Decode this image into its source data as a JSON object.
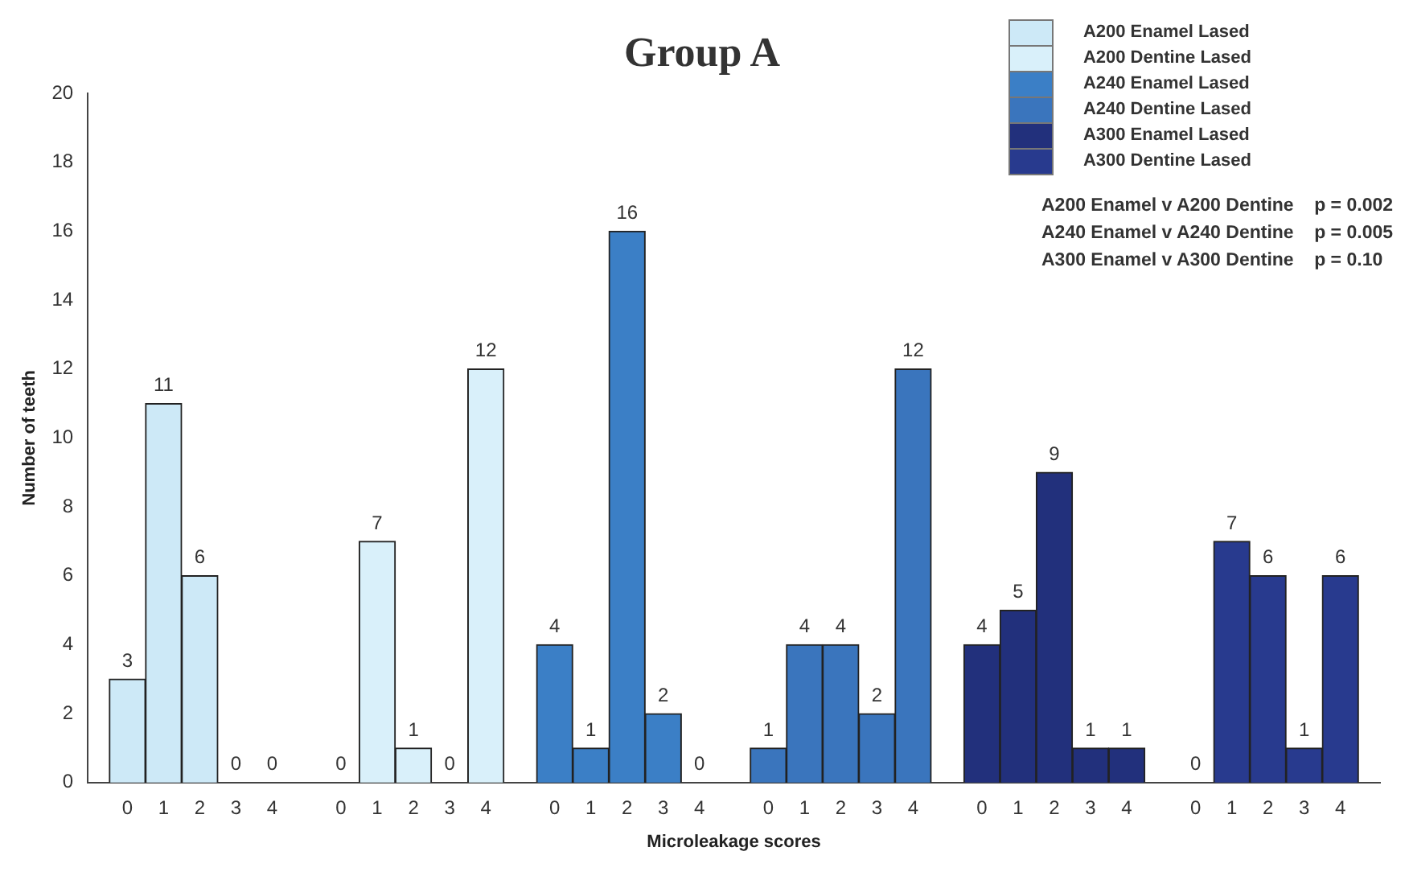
{
  "chart_data": {
    "type": "bar",
    "title": "Group A",
    "xlabel": "Microleakage scores",
    "ylabel": "Number of teeth",
    "categories": [
      "0",
      "1",
      "2",
      "3",
      "4",
      "0",
      "1",
      "2",
      "3",
      "4",
      "0",
      "1",
      "2",
      "3",
      "4",
      "0",
      "1",
      "2",
      "3",
      "4",
      "0",
      "1",
      "2",
      "3",
      "4",
      "0",
      "1",
      "2",
      "3",
      "4"
    ],
    "series": [
      {
        "name": "A200 Enamel Lased",
        "color": "#cde9f7",
        "values": [
          3,
          11,
          6,
          0,
          0,
          null,
          null,
          null,
          null,
          null,
          null,
          null,
          null,
          null,
          null,
          null,
          null,
          null,
          null,
          null,
          null,
          null,
          null,
          null,
          null,
          null,
          null,
          null,
          null,
          null
        ]
      },
      {
        "name": "A200 Dentine Lased",
        "color": "#d9f0fa",
        "values": [
          null,
          null,
          null,
          null,
          null,
          0,
          7,
          1,
          0,
          12,
          null,
          null,
          null,
          null,
          null,
          null,
          null,
          null,
          null,
          null,
          null,
          null,
          null,
          null,
          null,
          null,
          null,
          null,
          null,
          null
        ]
      },
      {
        "name": "A240 Enamel Lased",
        "color": "#3b7fc6",
        "values": [
          null,
          null,
          null,
          null,
          null,
          null,
          null,
          null,
          null,
          null,
          4,
          1,
          16,
          2,
          0,
          null,
          null,
          null,
          null,
          null,
          null,
          null,
          null,
          null,
          null,
          null,
          null,
          null,
          null,
          null
        ]
      },
      {
        "name": "A240 Dentine Lased",
        "color": "#3a75bd",
        "values": [
          null,
          null,
          null,
          null,
          null,
          null,
          null,
          null,
          null,
          null,
          null,
          null,
          null,
          null,
          null,
          1,
          4,
          4,
          2,
          12,
          null,
          null,
          null,
          null,
          null,
          null,
          null,
          null,
          null,
          null
        ]
      },
      {
        "name": "A300 Enamel Lased",
        "color": "#22307c",
        "values": [
          null,
          null,
          null,
          null,
          null,
          null,
          null,
          null,
          null,
          null,
          null,
          null,
          null,
          null,
          null,
          null,
          null,
          null,
          null,
          null,
          4,
          5,
          9,
          1,
          1,
          null,
          null,
          null,
          null,
          null
        ]
      },
      {
        "name": "A300 Dentine Lased",
        "color": "#283a8e",
        "values": [
          null,
          null,
          null,
          null,
          null,
          null,
          null,
          null,
          null,
          null,
          null,
          null,
          null,
          null,
          null,
          null,
          null,
          null,
          null,
          null,
          null,
          null,
          null,
          null,
          null,
          0,
          7,
          6,
          1,
          6
        ]
      }
    ],
    "ylim": [
      0,
      20
    ],
    "yticks": [
      0,
      2,
      4,
      6,
      8,
      10,
      12,
      14,
      16,
      18,
      20
    ],
    "grid": false,
    "legend": "top right",
    "data_labels": true,
    "annotations": [
      "A200 Enamel v A200 Dentine    p = 0.002",
      "A240 Enamel v A240 Dentine    p = 0.005",
      "A300 Enamel v A300 Dentine    p = 0.10"
    ]
  }
}
